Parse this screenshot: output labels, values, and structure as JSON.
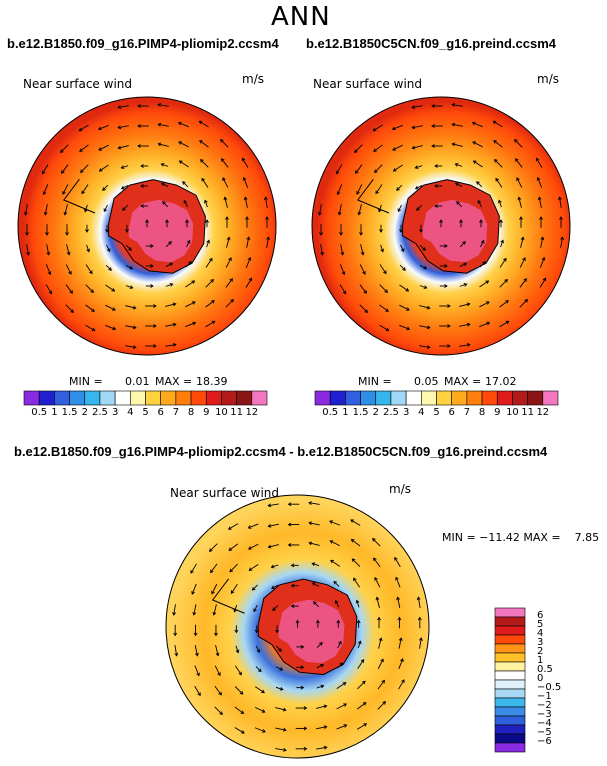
{
  "page_title": "ANN",
  "chart_data": [
    {
      "type": "heatmap",
      "projection": "south-polar stereographic",
      "title": "b.e12.B1850.f09_g16.PIMP4-pliomip2.ccsm4",
      "variable": "Near surface wind",
      "units": "m/s",
      "min_label": "MIN =",
      "min_value": "0.01",
      "max_label": "MAX =",
      "max_value": "18.39",
      "colorbar": {
        "levels": [
          "0.5",
          "1",
          "1.5",
          "2",
          "2.5",
          "3",
          "4",
          "5",
          "6",
          "7",
          "8",
          "9",
          "10",
          "11",
          "12"
        ],
        "colors": [
          "#8a2be2",
          "#2020d0",
          "#3060e0",
          "#2f8fe8",
          "#35b6ec",
          "#a0d8f5",
          "#ffffff",
          "#fff7b0",
          "#ffd23f",
          "#ffaa1e",
          "#ff7f0a",
          "#ff4a0a",
          "#e01b1b",
          "#b51a1a",
          "#8b1414",
          "#f476c0"
        ]
      }
    },
    {
      "type": "heatmap",
      "projection": "south-polar stereographic",
      "title": "b.e12.B1850C5CN.f09_g16.preind.ccsm4",
      "variable": "Near surface wind",
      "units": "m/s",
      "min_label": "MIN =",
      "min_value": "0.05",
      "max_label": "MAX =",
      "max_value": "17.02",
      "colorbar": {
        "levels": [
          "0.5",
          "1",
          "1.5",
          "2",
          "2.5",
          "3",
          "4",
          "5",
          "6",
          "7",
          "8",
          "9",
          "10",
          "11",
          "12"
        ],
        "colors": [
          "#8a2be2",
          "#2020d0",
          "#3060e0",
          "#2f8fe8",
          "#35b6ec",
          "#a0d8f5",
          "#ffffff",
          "#fff7b0",
          "#ffd23f",
          "#ffaa1e",
          "#ff7f0a",
          "#ff4a0a",
          "#e01b1b",
          "#b51a1a",
          "#8b1414",
          "#f476c0"
        ]
      }
    },
    {
      "type": "heatmap",
      "projection": "south-polar stereographic",
      "title": "b.e12.B1850.f09_g16.PIMP4-pliomip2.ccsm4 - b.e12.B1850C5CN.f09_g16.preind.ccsm4",
      "variable": "Near surface wind",
      "units": "m/s",
      "stats_text": "MIN = −11.42 MAX =    7.85",
      "colorbar": {
        "levels": [
          "6",
          "5",
          "4",
          "3",
          "2",
          "1",
          "0.5",
          "0",
          "−0.5",
          "−1",
          "−2",
          "−3",
          "−4",
          "−5",
          "−6"
        ],
        "colors": [
          "#f476c0",
          "#b51a1a",
          "#e01b1b",
          "#ff4a0a",
          "#ff9418",
          "#ffc12a",
          "#fff3a0",
          "#ffffff",
          "#dff1fb",
          "#a8d8f3",
          "#3cb8ec",
          "#3a8ce6",
          "#2f5fdb",
          "#2020c0",
          "#0b0b8a",
          "#8a2be2"
        ]
      }
    }
  ]
}
